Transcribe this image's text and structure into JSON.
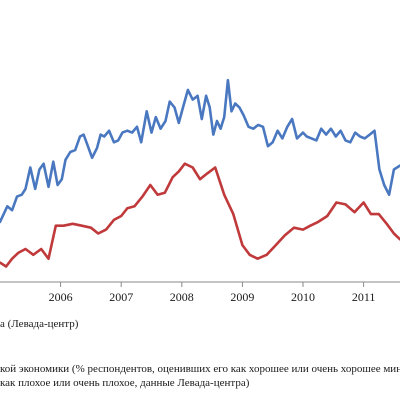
{
  "chart_data": {
    "type": "line",
    "x_range": [
      2005.0,
      2011.6
    ],
    "y_range": [
      0,
      100
    ],
    "x_ticks": [
      {
        "value": 2006,
        "label": "2006"
      },
      {
        "value": 2007,
        "label": "2007"
      },
      {
        "value": 2008,
        "label": "2008"
      },
      {
        "value": 2009,
        "label": "2009"
      },
      {
        "value": 2010,
        "label": "2010"
      },
      {
        "value": 2011,
        "label": "2011"
      }
    ],
    "grid": false,
    "series": [
      {
        "color": "#4a78c0",
        "x": [
          2005.0,
          2005.12,
          2005.2,
          2005.28,
          2005.36,
          2005.42,
          2005.5,
          2005.58,
          2005.65,
          2005.72,
          2005.8,
          2005.88,
          2005.95,
          2006.02,
          2006.08,
          2006.16,
          2006.24,
          2006.32,
          2006.38,
          2006.45,
          2006.52,
          2006.6,
          2006.66,
          2006.72,
          2006.8,
          2006.88,
          2006.95,
          2007.02,
          2007.1,
          2007.18,
          2007.26,
          2007.33,
          2007.42,
          2007.5,
          2007.57,
          2007.65,
          2007.73,
          2007.8,
          2007.88,
          2007.95,
          2008.02,
          2008.1,
          2008.18,
          2008.26,
          2008.33,
          2008.4,
          2008.46,
          2008.52,
          2008.58,
          2008.64,
          2008.7,
          2008.76,
          2008.82,
          2008.88,
          2008.95,
          2009.02,
          2009.1,
          2009.18,
          2009.26,
          2009.34,
          2009.42,
          2009.5,
          2009.58,
          2009.66,
          2009.74,
          2009.82,
          2009.9,
          2010.0,
          2010.06,
          2010.14,
          2010.22,
          2010.3,
          2010.38,
          2010.46,
          2010.54,
          2010.62,
          2010.7,
          2010.78,
          2010.86,
          2010.94,
          2011.02,
          2011.1,
          2011.18,
          2011.26,
          2011.34,
          2011.42,
          2011.5,
          2011.6
        ],
        "y": [
          31,
          39,
          37,
          44,
          45,
          48,
          59,
          48,
          58,
          61,
          49,
          62,
          50,
          53,
          63,
          67,
          68,
          75,
          76,
          70,
          64,
          69,
          76,
          75,
          78,
          72,
          73,
          77,
          78,
          77,
          80,
          72,
          88,
          77,
          85,
          79,
          83,
          93,
          90,
          82,
          90,
          99,
          94,
          96,
          84,
          96,
          90,
          76,
          83,
          79,
          85,
          104,
          88,
          92,
          90,
          86,
          80,
          79,
          81,
          80,
          70,
          72,
          78,
          74,
          80,
          84,
          74,
          77,
          75,
          74,
          73,
          79,
          76,
          79,
          75,
          78,
          73,
          72,
          77,
          75,
          74,
          76,
          78,
          58,
          50,
          45,
          58,
          60
        ]
      },
      {
        "color": "#c0393b",
        "x": [
          2005.0,
          2005.1,
          2005.2,
          2005.3,
          2005.42,
          2005.55,
          2005.68,
          2005.8,
          2005.92,
          2006.05,
          2006.2,
          2006.35,
          2006.5,
          2006.62,
          2006.75,
          2006.88,
          2007.0,
          2007.1,
          2007.22,
          2007.35,
          2007.48,
          2007.6,
          2007.72,
          2007.85,
          2007.95,
          2008.05,
          2008.18,
          2008.3,
          2008.42,
          2008.55,
          2008.7,
          2008.85,
          2009.0,
          2009.12,
          2009.25,
          2009.4,
          2009.55,
          2009.7,
          2009.85,
          2010.0,
          2010.12,
          2010.25,
          2010.4,
          2010.55,
          2010.7,
          2010.85,
          2011.0,
          2011.12,
          2011.25,
          2011.38,
          2011.5,
          2011.6
        ],
        "y": [
          10,
          8,
          12,
          15,
          17,
          14,
          17,
          12,
          29,
          29,
          30,
          29,
          28,
          25,
          27,
          32,
          34,
          38,
          39,
          44,
          50,
          45,
          46,
          54,
          57,
          61,
          59,
          53,
          56,
          59,
          45,
          35,
          19,
          14,
          12,
          14,
          19,
          24,
          28,
          27,
          29,
          31,
          34,
          41,
          40,
          36,
          41,
          35,
          35,
          30,
          25,
          22
        ]
      }
    ]
  },
  "legend": {
    "text": "а (Левада-центр)"
  },
  "caption": {
    "line1": "кой экономики (% респондентов, оценивших его как хорошее или очень хорошее мину",
    "line2": "как плохое или очень плохое, данные Левада-центра)"
  }
}
